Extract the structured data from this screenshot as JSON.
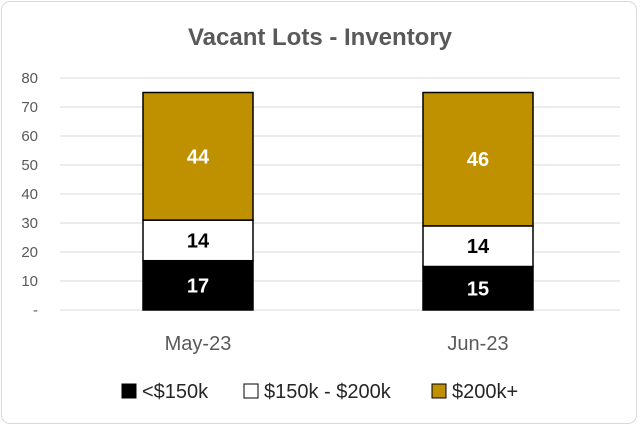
{
  "chart_data": {
    "type": "bar",
    "stacked": true,
    "title": "Vacant Lots - Inventory",
    "xlabel": "",
    "ylabel": "",
    "categories": [
      "May-23",
      "Jun-23"
    ],
    "series": [
      {
        "name": "<$150k",
        "values": [
          17,
          15
        ],
        "color": "#000000",
        "label_color": "#ffffff"
      },
      {
        "name": "$150k - $200k",
        "values": [
          14,
          14
        ],
        "color": "#ffffff",
        "label_color": "#000000"
      },
      {
        "name": "$200k+",
        "values": [
          44,
          46
        ],
        "color": "#bf9000",
        "label_color": "#ffffff"
      }
    ],
    "ylim": [
      0,
      80
    ],
    "yticks": [
      0,
      10,
      20,
      30,
      40,
      50,
      60,
      70,
      80
    ],
    "ytick_labels": [
      "-",
      "10",
      "20",
      "30",
      "40",
      "50",
      "60",
      "70",
      "80"
    ],
    "grid": true,
    "legend_position": "bottom",
    "gridline_color": "#d9d9d9",
    "bar_edge_color": "#000000"
  }
}
